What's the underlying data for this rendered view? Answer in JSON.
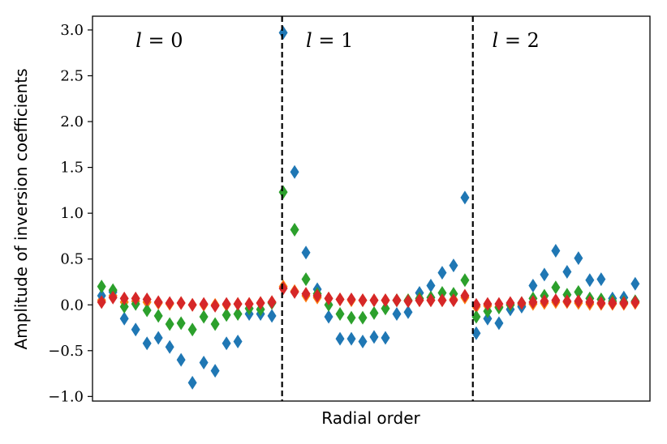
{
  "chart_data": {
    "type": "scatter",
    "marker": "diamond",
    "xlabel": "Radial order",
    "ylabel": "Amplitude of inversion coefficients",
    "ylim": [
      -1.05,
      3.15
    ],
    "xlim": [
      -0.8,
      48.3
    ],
    "yticks": [
      -1.0,
      -0.5,
      0.0,
      0.5,
      1.0,
      1.5,
      2.0,
      2.5,
      3.0
    ],
    "ytick_labels": [
      "−1.0",
      "−0.5",
      "0.0",
      "0.5",
      "1.0",
      "1.5",
      "2.0",
      "2.5",
      "3.0"
    ],
    "xticks_visible": false,
    "grid": false,
    "section_dividers_x": [
      15.9,
      32.7
    ],
    "sections": [
      {
        "l_symbol": "l",
        "eq": "=",
        "value": "0",
        "x": 3.0
      },
      {
        "l_symbol": "l",
        "eq": "=",
        "value": "1",
        "x": 18.0
      },
      {
        "l_symbol": "l",
        "eq": "=",
        "value": "2",
        "x": 34.4
      }
    ],
    "x": [
      0,
      1,
      2,
      3,
      4,
      5,
      6,
      7,
      8,
      9,
      10,
      11,
      12,
      13,
      14,
      15,
      16,
      17,
      18,
      19,
      20,
      21,
      22,
      23,
      24,
      25,
      26,
      27,
      28,
      29,
      30,
      31,
      32,
      33,
      34,
      35,
      36,
      37,
      38,
      39,
      40,
      41,
      42,
      43,
      44,
      45,
      46,
      47
    ],
    "series": [
      {
        "color": "#ff7f0e",
        "values": [
          0.05,
          0.1,
          0.03,
          0.04,
          0.03,
          0.02,
          0.01,
          0.02,
          0.0,
          0.0,
          0.0,
          0.0,
          0.01,
          0.01,
          0.02,
          0.03,
          0.2,
          0.15,
          0.1,
          0.08,
          0.07,
          0.06,
          0.05,
          0.05,
          0.05,
          0.05,
          0.05,
          0.05,
          0.05,
          0.05,
          0.05,
          0.06,
          0.08,
          -0.02,
          -0.01,
          -0.02,
          0.0,
          0.0,
          0.01,
          0.02,
          0.03,
          0.03,
          0.02,
          0.01,
          0.01,
          0.01,
          0.01,
          0.02
        ]
      },
      {
        "color": "#1f77b4",
        "values": [
          0.1,
          0.14,
          -0.15,
          -0.27,
          -0.42,
          -0.36,
          -0.46,
          -0.6,
          -0.85,
          -0.63,
          -0.72,
          -0.42,
          -0.4,
          -0.1,
          -0.1,
          -0.12,
          2.97,
          1.45,
          0.57,
          0.17,
          -0.13,
          -0.37,
          -0.37,
          -0.4,
          -0.35,
          -0.36,
          -0.1,
          -0.08,
          0.13,
          0.21,
          0.35,
          0.43,
          1.17,
          -0.31,
          -0.15,
          -0.2,
          -0.05,
          -0.02,
          0.21,
          0.33,
          0.59,
          0.36,
          0.51,
          0.27,
          0.28,
          0.07,
          0.08,
          0.23
        ]
      },
      {
        "color": "#2ca02c",
        "values": [
          0.2,
          0.16,
          -0.02,
          0.01,
          -0.06,
          -0.12,
          -0.21,
          -0.2,
          -0.27,
          -0.13,
          -0.21,
          -0.11,
          -0.1,
          -0.04,
          -0.05,
          0.02,
          1.23,
          0.82,
          0.28,
          0.12,
          0.0,
          -0.1,
          -0.14,
          -0.14,
          -0.09,
          -0.04,
          0.05,
          0.05,
          0.07,
          0.08,
          0.13,
          0.12,
          0.27,
          -0.13,
          -0.07,
          -0.03,
          0.0,
          0.02,
          0.07,
          0.1,
          0.19,
          0.11,
          0.14,
          0.07,
          0.06,
          0.04,
          0.03,
          0.04
        ]
      },
      {
        "color": "#d62728",
        "values": [
          0.03,
          0.08,
          0.07,
          0.07,
          0.06,
          0.03,
          0.02,
          0.02,
          0.0,
          0.01,
          -0.01,
          0.01,
          0.01,
          0.01,
          0.02,
          0.03,
          0.18,
          0.14,
          0.12,
          0.1,
          0.07,
          0.06,
          0.06,
          0.05,
          0.05,
          0.05,
          0.05,
          0.04,
          0.05,
          0.05,
          0.05,
          0.05,
          0.1,
          0.0,
          0.01,
          0.01,
          0.02,
          0.02,
          0.03,
          0.04,
          0.05,
          0.04,
          0.04,
          0.03,
          0.02,
          0.02,
          0.02,
          0.03
        ]
      }
    ]
  }
}
